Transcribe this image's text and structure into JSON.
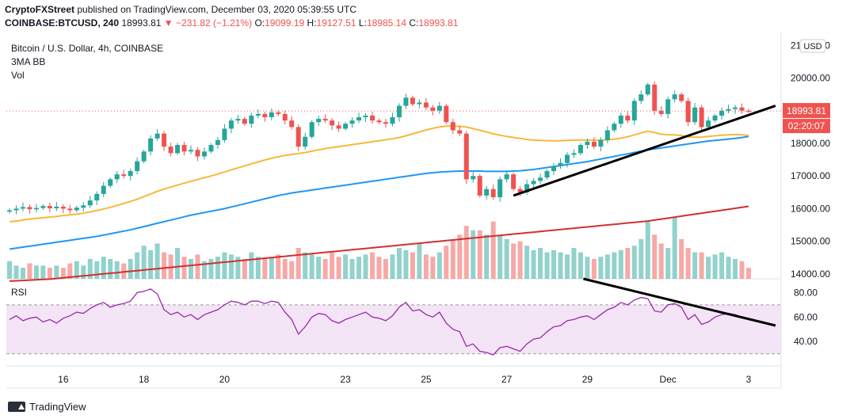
{
  "header": {
    "publisher": "CryptoFXStreet",
    "published_text": "published on TradingView.com, December 03, 2020 05:39:55 UTC",
    "symbol": "COINBASE:BTCUSD, 240",
    "last": "18993.81",
    "change": "−231.82 (−1.21%)",
    "o_label": "O:",
    "o": "19099.19",
    "h_label": "H:",
    "h": "19127.51",
    "l_label": "L:",
    "l": "18985.14",
    "c_label": "C:",
    "c": "18993.81"
  },
  "legend": {
    "title": "Bitcoin / U.S. Dollar, 4h, COINBASE",
    "ma": "3MA BB",
    "vol": "Vol",
    "rsi": "RSI"
  },
  "currency": "USD",
  "price_tag": "18993.81",
  "time_tag": "02:20:07",
  "footer": {
    "brand": "TradingView"
  },
  "colors": {
    "up": "#26a69a",
    "down": "#ef5350",
    "ma_orange": "#f6b93b",
    "ma_blue": "#2196f3",
    "ma_red": "#d32f2f",
    "rsi_line": "#9c27b0",
    "rsi_band": "#f3e5f5"
  },
  "chart_data": {
    "type": "candlestick",
    "price_axis": {
      "ticks": [
        "21000.00",
        "20000.00",
        "19000.00",
        "18000.00",
        "17000.00",
        "16000.00",
        "15000.00",
        "14000.00"
      ],
      "range": [
        13850,
        21300
      ]
    },
    "rsi_axis": {
      "ticks": [
        "80.00",
        "60.00",
        "40.00"
      ],
      "range": [
        20,
        90
      ],
      "band": [
        30,
        70
      ]
    },
    "x_ticks": [
      {
        "label": "16",
        "i": 8
      },
      {
        "label": "18",
        "i": 20
      },
      {
        "label": "20",
        "i": 32
      },
      {
        "label": "23",
        "i": 50
      },
      {
        "label": "25",
        "i": 62
      },
      {
        "label": "27",
        "i": 74
      },
      {
        "label": "29",
        "i": 86
      },
      {
        "label": "Dec",
        "i": 98
      },
      {
        "label": "3",
        "i": 110
      }
    ],
    "close": [
      15950,
      16000,
      16050,
      15980,
      16020,
      16080,
      16010,
      16060,
      16000,
      15950,
      16030,
      16100,
      16250,
      16450,
      16700,
      16900,
      17050,
      17000,
      17150,
      17450,
      17750,
      18150,
      18300,
      17900,
      17700,
      17950,
      17750,
      17800,
      17600,
      17750,
      17950,
      18100,
      18450,
      18700,
      18750,
      18600,
      18850,
      18900,
      18800,
      18950,
      18900,
      18700,
      18500,
      17900,
      18200,
      18650,
      18750,
      18700,
      18550,
      18450,
      18600,
      18700,
      18800,
      18850,
      18700,
      18650,
      18600,
      18800,
      19150,
      19400,
      19200,
      19250,
      19100,
      19000,
      19150,
      18650,
      18400,
      18300,
      16900,
      17000,
      16400,
      16600,
      16350,
      16900,
      17050,
      16600,
      16500,
      16750,
      16850,
      16950,
      17150,
      17300,
      17400,
      17650,
      17700,
      17950,
      18050,
      17900,
      18100,
      18400,
      18600,
      18850,
      18700,
      19300,
      19500,
      19800,
      19000,
      18900,
      19350,
      19500,
      19300,
      18650,
      19100,
      18500,
      18700,
      18850,
      19000,
      19050,
      19100,
      19000,
      18993
    ],
    "volume": [
      8,
      6,
      5,
      7,
      6,
      6,
      5,
      6,
      5,
      7,
      8,
      6,
      9,
      8,
      10,
      9,
      8,
      7,
      9,
      12,
      15,
      13,
      16,
      12,
      11,
      14,
      10,
      9,
      11,
      8,
      9,
      10,
      12,
      11,
      10,
      9,
      12,
      10,
      9,
      10,
      11,
      9,
      8,
      14,
      12,
      11,
      10,
      9,
      12,
      10,
      11,
      9,
      10,
      11,
      12,
      10,
      9,
      11,
      14,
      13,
      12,
      16,
      11,
      10,
      12,
      15,
      18,
      20,
      24,
      22,
      22,
      20,
      26,
      20,
      18,
      16,
      17,
      15,
      13,
      14,
      12,
      13,
      12,
      11,
      14,
      12,
      10,
      9,
      10,
      11,
      12,
      13,
      14,
      15,
      18,
      26,
      20,
      16,
      14,
      28,
      18,
      14,
      12,
      12,
      10,
      11,
      12,
      10,
      9,
      8,
      5
    ],
    "ma_orange": [
      15600,
      15620,
      15650,
      15680,
      15700,
      15720,
      15740,
      15760,
      15790,
      15810,
      15830,
      15860,
      15900,
      15940,
      15990,
      16040,
      16100,
      16160,
      16220,
      16290,
      16370,
      16450,
      16530,
      16600,
      16660,
      16720,
      16780,
      16840,
      16890,
      16950,
      17000,
      17060,
      17120,
      17190,
      17250,
      17310,
      17370,
      17430,
      17490,
      17540,
      17590,
      17630,
      17660,
      17690,
      17720,
      17760,
      17800,
      17840,
      17870,
      17900,
      17930,
      17960,
      17990,
      18020,
      18050,
      18080,
      18110,
      18140,
      18180,
      18230,
      18290,
      18350,
      18410,
      18460,
      18500,
      18530,
      18530,
      18520,
      18500,
      18450,
      18400,
      18350,
      18290,
      18250,
      18210,
      18180,
      18150,
      18120,
      18100,
      18090,
      18080,
      18080,
      18080,
      18090,
      18100,
      18100,
      18100,
      18100,
      18100,
      18110,
      18130,
      18160,
      18200,
      18260,
      18320,
      18370,
      18330,
      18280,
      18260,
      18260,
      18240,
      18200,
      18190,
      18190,
      18210,
      18230,
      18250,
      18260,
      18270,
      18260,
      18250
    ],
    "ma_blue": [
      14760,
      14790,
      14820,
      14850,
      14880,
      14910,
      14940,
      14970,
      15000,
      15030,
      15060,
      15090,
      15120,
      15150,
      15190,
      15230,
      15270,
      15310,
      15350,
      15400,
      15450,
      15500,
      15550,
      15600,
      15650,
      15700,
      15750,
      15800,
      15840,
      15880,
      15920,
      15960,
      16000,
      16050,
      16100,
      16150,
      16200,
      16250,
      16300,
      16350,
      16400,
      16440,
      16480,
      16510,
      16540,
      16570,
      16600,
      16630,
      16660,
      16690,
      16720,
      16750,
      16780,
      16810,
      16840,
      16870,
      16900,
      16930,
      16960,
      16990,
      17020,
      17050,
      17080,
      17100,
      17120,
      17130,
      17140,
      17150,
      17150,
      17150,
      17150,
      17140,
      17140,
      17140,
      17140,
      17150,
      17160,
      17180,
      17200,
      17230,
      17260,
      17290,
      17320,
      17350,
      17380,
      17410,
      17440,
      17480,
      17520,
      17560,
      17600,
      17640,
      17680,
      17720,
      17760,
      17800,
      17830,
      17860,
      17890,
      17920,
      17950,
      17980,
      18010,
      18040,
      18070,
      18090,
      18110,
      18130,
      18150,
      18180,
      18210
    ],
    "ma_red": [
      13780,
      13790,
      13800,
      13810,
      13820,
      13830,
      13840,
      13860,
      13880,
      13900,
      13920,
      13940,
      13960,
      13980,
      14000,
      14020,
      14040,
      14060,
      14080,
      14100,
      14120,
      14140,
      14160,
      14180,
      14200,
      14220,
      14240,
      14260,
      14280,
      14300,
      14320,
      14340,
      14360,
      14380,
      14400,
      14420,
      14440,
      14460,
      14480,
      14500,
      14520,
      14540,
      14560,
      14580,
      14600,
      14620,
      14640,
      14660,
      14680,
      14700,
      14720,
      14740,
      14760,
      14780,
      14800,
      14820,
      14840,
      14860,
      14880,
      14900,
      14920,
      14940,
      14960,
      14980,
      15000,
      15020,
      15040,
      15060,
      15080,
      15100,
      15120,
      15140,
      15160,
      15180,
      15200,
      15220,
      15240,
      15260,
      15280,
      15300,
      15320,
      15340,
      15360,
      15380,
      15400,
      15420,
      15440,
      15460,
      15480,
      15500,
      15520,
      15540,
      15560,
      15580,
      15600,
      15620,
      15650,
      15680,
      15710,
      15740,
      15770,
      15800,
      15830,
      15860,
      15890,
      15920,
      15950,
      15980,
      16010,
      16040,
      16070
    ],
    "rsi": [
      58,
      61,
      57,
      59,
      60,
      56,
      58,
      55,
      59,
      61,
      64,
      63,
      67,
      70,
      72,
      68,
      70,
      71,
      73,
      80,
      81,
      83,
      79,
      66,
      62,
      64,
      60,
      62,
      58,
      62,
      64,
      66,
      70,
      73,
      72,
      70,
      73,
      73,
      71,
      73,
      72,
      64,
      58,
      46,
      52,
      60,
      63,
      62,
      57,
      55,
      58,
      60,
      62,
      64,
      60,
      59,
      57,
      61,
      68,
      72,
      65,
      66,
      62,
      60,
      64,
      55,
      50,
      48,
      36,
      38,
      32,
      31,
      29,
      35,
      36,
      34,
      32,
      38,
      42,
      43,
      48,
      52,
      53,
      57,
      58,
      60,
      61,
      58,
      62,
      66,
      68,
      72,
      70,
      74,
      76,
      75,
      65,
      64,
      70,
      71,
      68,
      58,
      62,
      54,
      56,
      60,
      62,
      63,
      62,
      60,
      58
    ]
  }
}
